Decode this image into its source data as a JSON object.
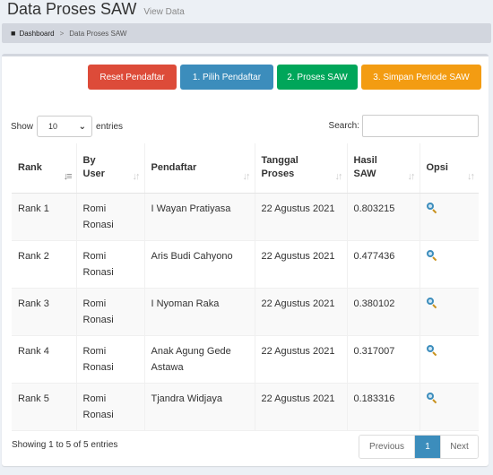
{
  "header": {
    "title": "Data Proses SAW",
    "subtitle": "View Data"
  },
  "breadcrumb": {
    "home": "Dashboard",
    "separator": ">",
    "current": "Data Proses SAW"
  },
  "toolbar": {
    "reset_label": "Reset Pendaftar",
    "pilih_label": "1. Pilih Pendaftar",
    "proses_label": "2. Proses SAW",
    "simpan_label": "3. Simpan Periode SAW"
  },
  "length": {
    "show_label": "Show",
    "value": "10",
    "entries_label": "entries"
  },
  "search": {
    "label": "Search:",
    "value": ""
  },
  "table": {
    "headers": [
      "Rank",
      "By User",
      "Pendaftar",
      "Tanggal Proses",
      "Hasil SAW",
      "Opsi"
    ],
    "rows": [
      {
        "rank": "Rank 1",
        "user": "Romi Ronasi",
        "pendaftar": "I Wayan Pratiyasa",
        "tanggal": "22 Agustus 2021",
        "hasil": "0.803215"
      },
      {
        "rank": "Rank 2",
        "user": "Romi Ronasi",
        "pendaftar": "Aris Budi Cahyono",
        "tanggal": "22 Agustus 2021",
        "hasil": "0.477436"
      },
      {
        "rank": "Rank 3",
        "user": "Romi Ronasi",
        "pendaftar": "I Nyoman Raka",
        "tanggal": "22 Agustus 2021",
        "hasil": "0.380102"
      },
      {
        "rank": "Rank 4",
        "user": "Romi Ronasi",
        "pendaftar": "Anak Agung Gede Astawa",
        "tanggal": "22 Agustus 2021",
        "hasil": "0.317007"
      },
      {
        "rank": "Rank 5",
        "user": "Romi Ronasi",
        "pendaftar": "Tjandra Widjaya",
        "tanggal": "22 Agustus 2021",
        "hasil": "0.183316"
      }
    ]
  },
  "footer": {
    "info": "Showing 1 to 5 of 5 entries",
    "prev_label": "Previous",
    "page_label": "1",
    "next_label": "Next"
  }
}
